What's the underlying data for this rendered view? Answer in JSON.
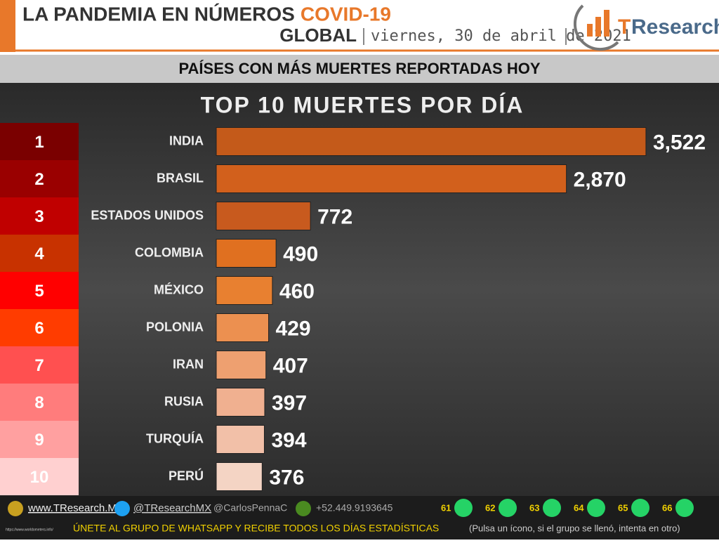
{
  "header": {
    "title": "LA PANDEMIA EN NÚMEROS",
    "title_highlight": "COVID-19",
    "scope": "GLOBAL",
    "date": "viernes, 30 de abril de 2021",
    "logo_t": "T",
    "logo_rest": "Research",
    "subtitle": "PAÍSES CON MÁS MUERTES REPORTADAS HOY"
  },
  "chart_data": {
    "type": "hbar",
    "title": "TOP 10 MUERTES POR DÍA",
    "ranks": [
      "1",
      "2",
      "3",
      "4",
      "5",
      "6",
      "7",
      "8",
      "9",
      "10"
    ],
    "rank_colors": [
      "#7a0000",
      "#9a0000",
      "#c00000",
      "#c83200",
      "#ff0000",
      "#ff3c00",
      "#ff5050",
      "#ff7c7c",
      "#ffa0a0",
      "#ffd0d0"
    ],
    "categories": [
      "INDIA",
      "BRASIL",
      "ESTADOS UNIDOS",
      "COLOMBIA",
      "MÉXICO",
      "POLONIA",
      "IRAN",
      "RUSIA",
      "TURQUÍA",
      "PERÚ"
    ],
    "values": [
      3522,
      2870,
      772,
      490,
      460,
      429,
      407,
      397,
      394,
      376
    ],
    "value_labels": [
      "3,522",
      "2,870",
      "772",
      "490",
      "460",
      "429",
      "407",
      "397",
      "394",
      "376"
    ],
    "colors": [
      "#c45a1a",
      "#d2601c",
      "#c85a1e",
      "#e07020",
      "#e88030",
      "#ec9050",
      "#eea070",
      "#f0b090",
      "#f2c0a8",
      "#f4d4c4"
    ],
    "xlim": [
      0,
      4000
    ]
  },
  "footer": {
    "web": "www.TResearch.Mx",
    "twitter": "@TResearchMX",
    "personal": "@CarlosPennaC",
    "phone": "+52.449.9193645",
    "groups": [
      "61",
      "62",
      "63",
      "64",
      "65",
      "66"
    ],
    "cta": "ÚNETE AL GRUPO DE WHATSAPP Y RECIBE TODOS LOS DÍAS ESTADÍSTICAS",
    "cta_note": "(Pulsa un ícono, si el grupo se llenó, intenta en otro)",
    "source": "https://www.worldometers.info/"
  }
}
